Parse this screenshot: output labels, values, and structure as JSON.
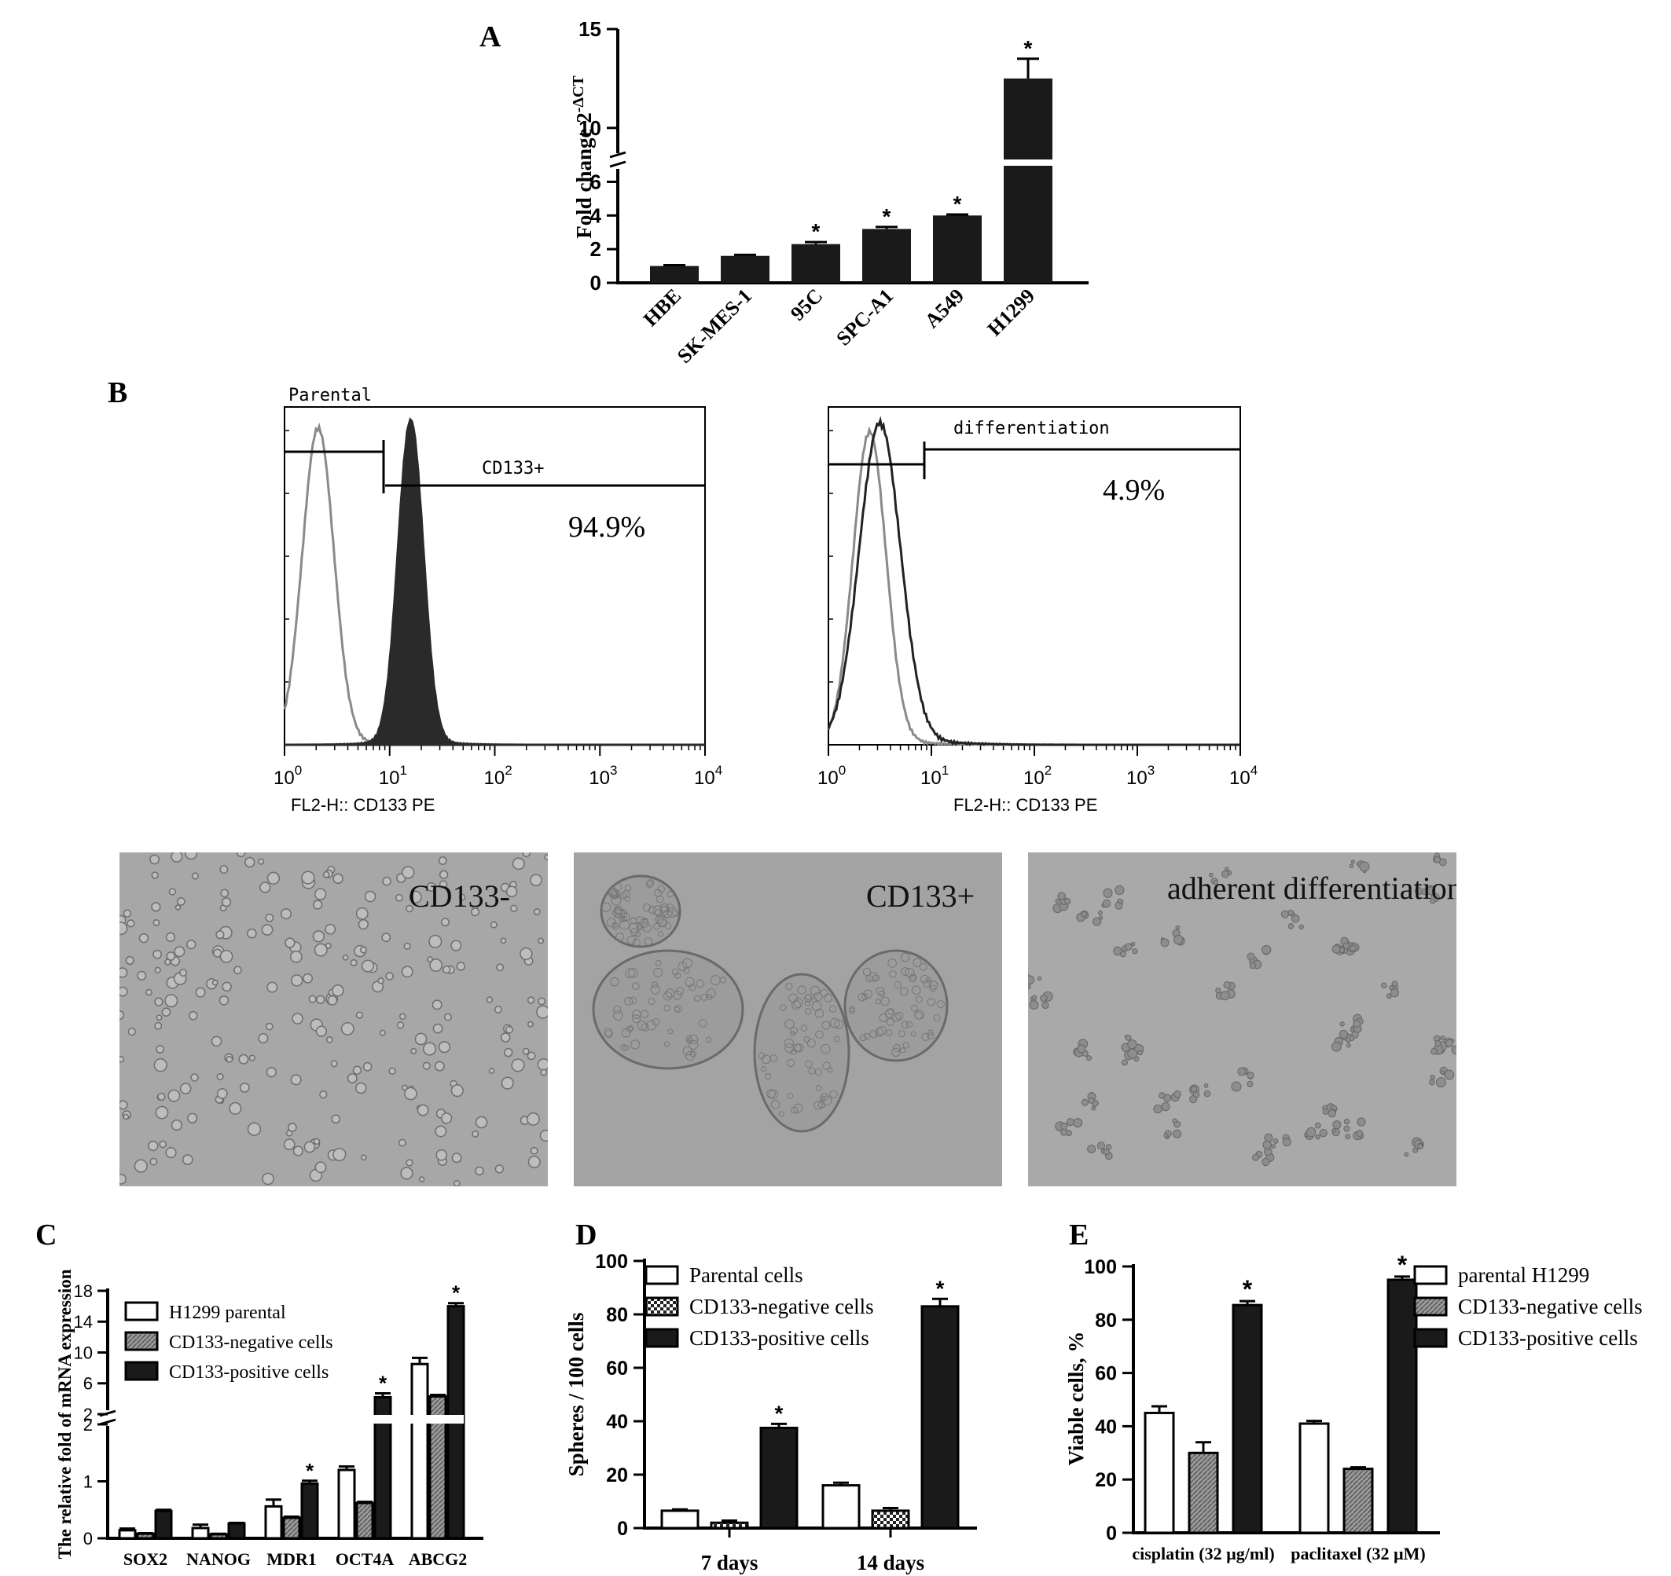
{
  "panels": {
    "a": "A",
    "b": "B",
    "c": "C",
    "d": "D",
    "e": "E"
  },
  "chart_data": [
    {
      "id": "A",
      "type": "bar",
      "categories": [
        "HBE",
        "SK-MES-1",
        "95C",
        "SPC-A1",
        "A549",
        "H1299"
      ],
      "values": [
        1.0,
        1.6,
        2.3,
        3.2,
        4.0,
        12.5
      ],
      "errors": [
        0.05,
        0.06,
        0.12,
        0.12,
        0.06,
        1.0
      ],
      "significant": [
        false,
        false,
        true,
        true,
        true,
        true
      ],
      "ylabel_main": "Fold change 2",
      "ylabel_sup": "-ΔCT",
      "yticks": [
        "0",
        "2",
        "4",
        "6",
        "10",
        "15"
      ],
      "ylim": [
        0,
        15
      ],
      "axis_break": [
        7,
        9
      ],
      "star": "*"
    },
    {
      "id": "B-parental",
      "type": "histogram",
      "title": "Parental",
      "gate_label": "CD133+",
      "percent": "94.9%",
      "xlabel": "FL2-H:: CD133 PE",
      "xscale": "log",
      "xticks": [
        "10",
        "10",
        "10",
        "10",
        "10"
      ],
      "xtick_exp": [
        "0",
        "1",
        "2",
        "3",
        "4"
      ]
    },
    {
      "id": "B-differentiation",
      "type": "histogram",
      "title": "differentiation",
      "percent": "4.9%",
      "xlabel": "FL2-H:: CD133 PE",
      "xscale": "log",
      "xticks": [
        "10",
        "10",
        "10",
        "10",
        "10"
      ],
      "xtick_exp": [
        "0",
        "1",
        "2",
        "3",
        "4"
      ]
    },
    {
      "id": "C",
      "type": "bar",
      "categories": [
        "SOX2",
        "NANOG",
        "MDR1",
        "OCT4A",
        "ABCG2"
      ],
      "series": [
        {
          "name": "H1299 parental",
          "values": [
            0.14,
            0.18,
            0.56,
            1.2,
            8.5
          ],
          "errors": [
            0.03,
            0.06,
            0.12,
            0.06,
            0.8
          ]
        },
        {
          "name": "CD133-negative cells",
          "values": [
            0.08,
            0.07,
            0.36,
            0.62,
            4.3
          ],
          "errors": [
            0.01,
            0.01,
            0.02,
            0.02,
            0.2
          ]
        },
        {
          "name": "CD133-positive cells",
          "values": [
            0.48,
            0.26,
            0.96,
            4.2,
            16.0
          ],
          "errors": [
            0.02,
            0.01,
            0.05,
            0.5,
            0.4
          ]
        }
      ],
      "significant_positive": [
        false,
        false,
        true,
        true,
        true
      ],
      "ylabel": "The relative fold of mRNA expression",
      "yticks_lower": [
        "0",
        "1",
        "2"
      ],
      "yticks_upper": [
        "2",
        "6",
        "10",
        "14",
        "18"
      ],
      "axis_break": true,
      "star": "*"
    },
    {
      "id": "D",
      "type": "bar",
      "categories": [
        "7 days",
        "14 days"
      ],
      "series": [
        {
          "name": "Parental cells",
          "values": [
            6.5,
            16.0
          ],
          "errors": [
            0.5,
            1.0
          ]
        },
        {
          "name": "CD133-negative cells",
          "values": [
            2.0,
            6.5
          ],
          "errors": [
            0.8,
            1.0
          ]
        },
        {
          "name": "CD133-positive cells",
          "values": [
            37.5,
            83.0
          ],
          "errors": [
            1.5,
            2.8
          ]
        }
      ],
      "significant_positive": [
        true,
        true
      ],
      "ylabel": "Spheres / 100 cells",
      "yticks": [
        "0",
        "20",
        "40",
        "60",
        "80",
        "100"
      ],
      "ylim": [
        0,
        100
      ],
      "star": "*"
    },
    {
      "id": "E",
      "type": "bar",
      "categories": [
        "cisplatin (32 µg/ml)",
        "paclitaxel (32 µM)"
      ],
      "series": [
        {
          "name": "parental H1299",
          "values": [
            45.0,
            41.0
          ],
          "errors": [
            2.5,
            1.0
          ]
        },
        {
          "name": "CD133-negative cells",
          "values": [
            30.0,
            24.0
          ],
          "errors": [
            4.0,
            0.6
          ]
        },
        {
          "name": "CD133-positive cells",
          "values": [
            85.5,
            95.0
          ],
          "errors": [
            1.5,
            1.2
          ]
        }
      ],
      "significant_positive": [
        true,
        true
      ],
      "ylabel": "Viable cells, %",
      "yticks": [
        "0",
        "20",
        "40",
        "60",
        "80",
        "100"
      ],
      "ylim": [
        0,
        100
      ],
      "star": "*"
    }
  ],
  "micrographs": {
    "neg": "CD133-",
    "pos": "CD133+",
    "diff": "adherent differentiation"
  },
  "colors": {
    "black_bar": "#1a1a1a",
    "gray_curve": "#8a8a8a",
    "photo_bg": "#a8a8a8"
  }
}
